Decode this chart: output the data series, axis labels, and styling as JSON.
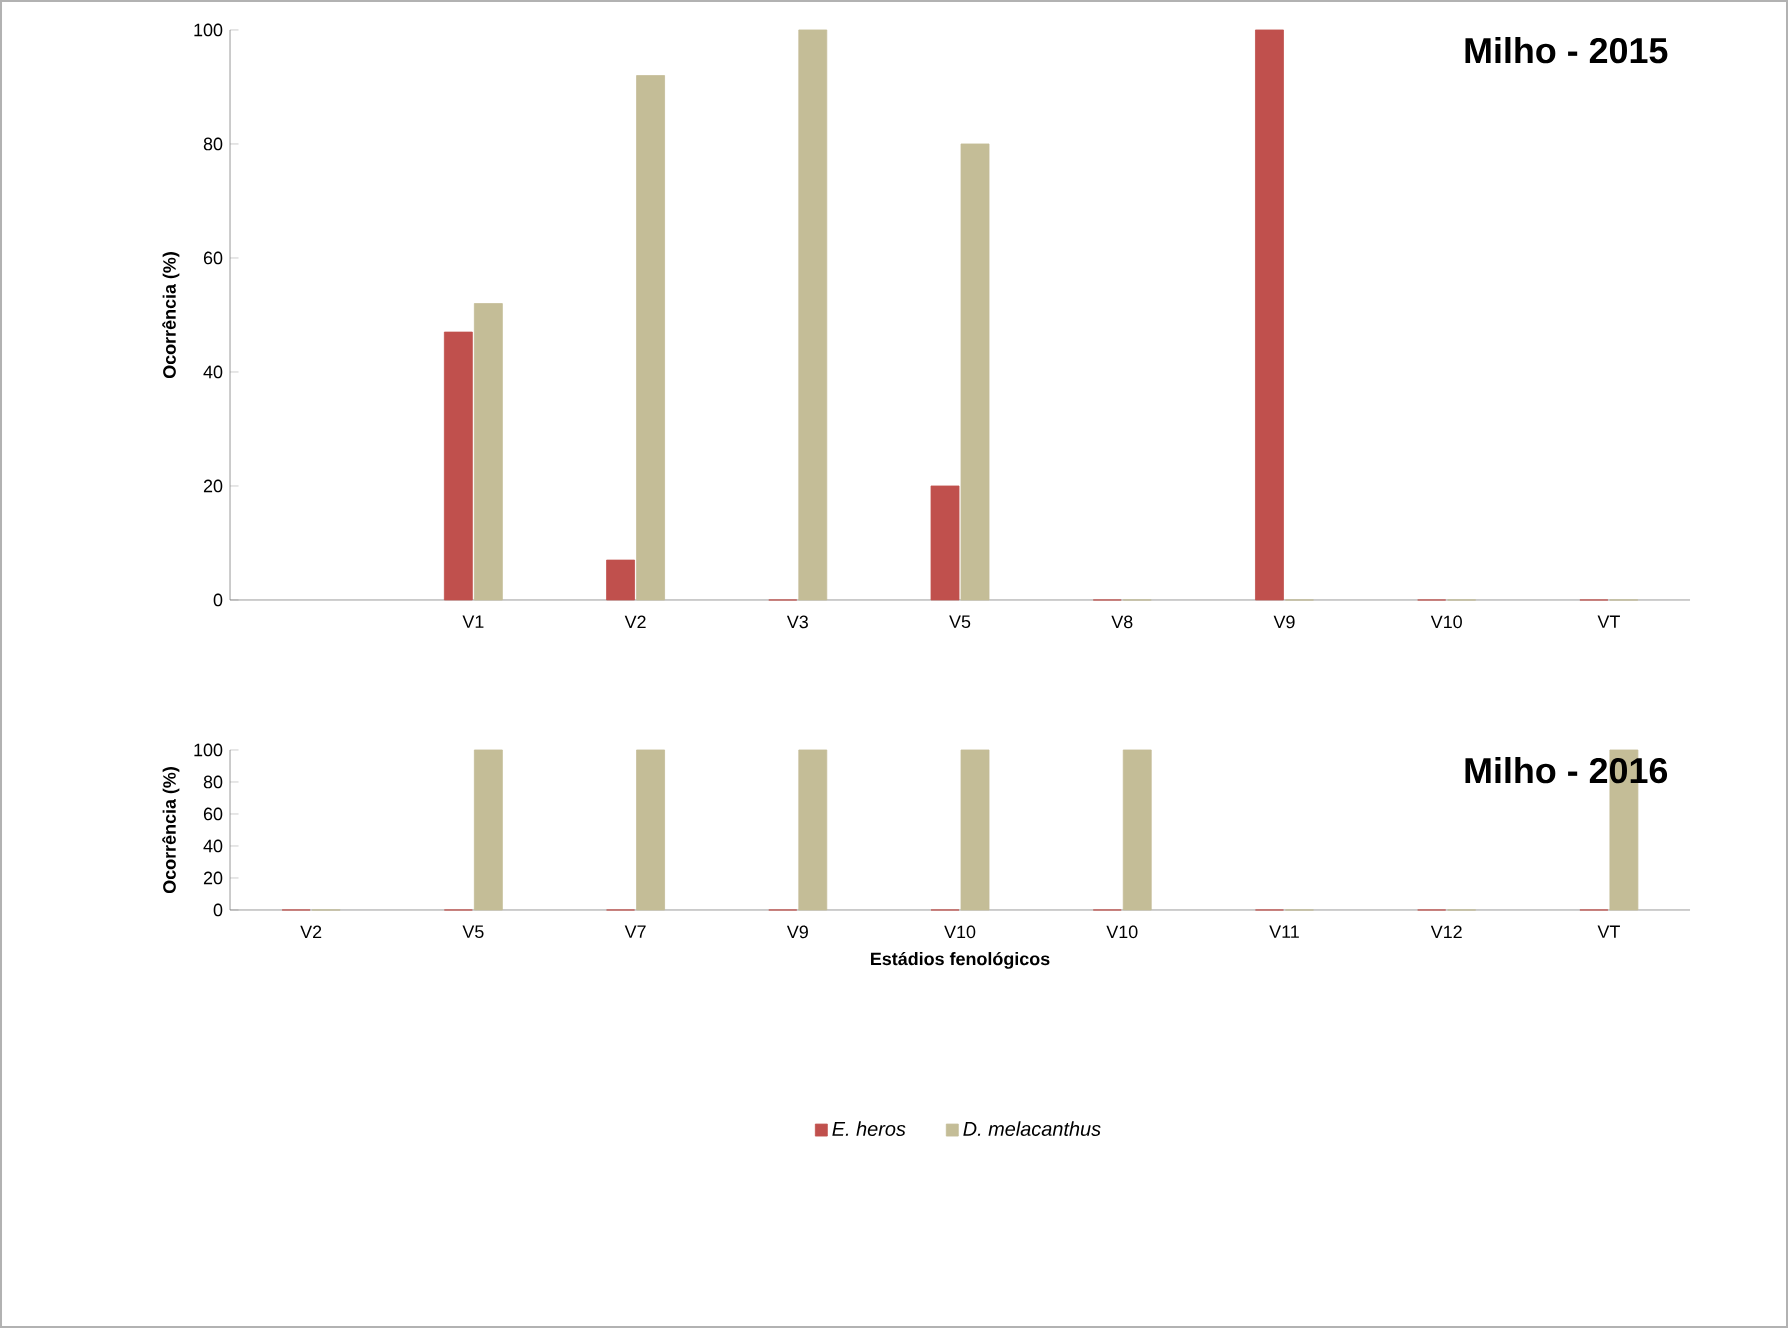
{
  "chart_data": [
    {
      "type": "bar",
      "title": "Milho - 2015",
      "ylabel": "Ocorrência (%)",
      "categories": [
        null,
        "V1",
        "V2",
        "V3",
        "V5",
        "V8",
        "V9",
        "V10",
        "VT"
      ],
      "series": [
        {
          "name": "E. heros",
          "color": "#c0504d",
          "values": [
            null,
            47,
            7,
            0,
            20,
            0,
            100,
            0,
            0
          ]
        },
        {
          "name": "D. melacanthus",
          "color": "#c4bd97",
          "values": [
            null,
            52,
            92,
            100,
            80,
            0,
            0,
            0,
            0
          ]
        }
      ],
      "ylim": [
        0,
        100
      ],
      "yticks": [
        0,
        20,
        40,
        60,
        80,
        100
      ],
      "legend": "bottom"
    },
    {
      "type": "bar",
      "title": "Milho - 2016",
      "ylabel": "Ocorrência (%)",
      "xlabel": "Estádios fenológicos",
      "categories": [
        "V2",
        "V5",
        "V7",
        "V9",
        "V10",
        "V10",
        "V11",
        "V12",
        "VT"
      ],
      "series": [
        {
          "color": "#c0504d",
          "values": [
            0,
            0,
            0,
            0,
            0,
            0,
            0,
            0,
            0
          ]
        },
        {
          "color": "#c4bd97",
          "values": [
            0,
            100,
            100,
            100,
            100,
            100,
            0,
            0,
            100
          ]
        }
      ],
      "ylim": [
        0,
        100
      ],
      "yticks": [
        0,
        20,
        40,
        60,
        80,
        100
      ]
    }
  ]
}
